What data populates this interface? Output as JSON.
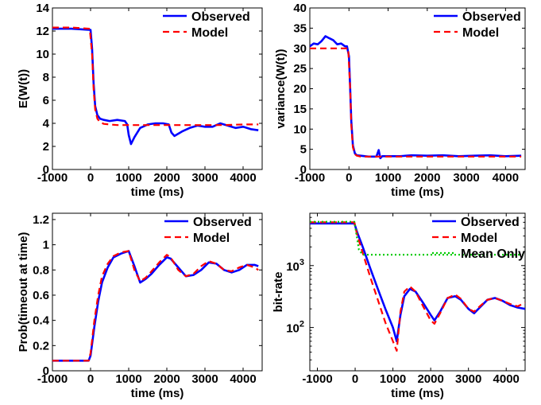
{
  "chart_data": [
    {
      "type": "line",
      "xlabel": "time (ms)",
      "ylabel": "E(W(t))",
      "xlim": [
        -1000,
        4500
      ],
      "ylim": [
        0,
        14
      ],
      "yscale": "linear",
      "xticks": [
        -1000,
        0,
        1000,
        2000,
        3000,
        4000
      ],
      "xtick_labels": [
        "-1000",
        "0",
        "1000",
        "2000",
        "3000",
        "4000"
      ],
      "yticks": [
        0,
        2,
        4,
        6,
        8,
        10,
        12,
        14
      ],
      "ytick_labels": [
        "0",
        "2",
        "4",
        "6",
        "8",
        "10",
        "12",
        "14"
      ],
      "legend_position": "top-right",
      "series": [
        {
          "name": "Observed",
          "color": "#0000ff",
          "style": "solid",
          "x": [
            -1000,
            -500,
            0,
            40,
            80,
            120,
            180,
            250,
            350,
            500,
            700,
            900,
            960,
            1000,
            1060,
            1150,
            1300,
            1500,
            1700,
            1900,
            2050,
            2120,
            2200,
            2400,
            2600,
            2800,
            3000,
            3200,
            3400,
            3600,
            3800,
            4000,
            4200,
            4400
          ],
          "y": [
            12.2,
            12.2,
            12.1,
            10.5,
            7.5,
            5.5,
            4.7,
            4.4,
            4.3,
            4.2,
            4.3,
            4.2,
            3.9,
            3.0,
            2.2,
            2.8,
            3.6,
            3.9,
            4.0,
            4.0,
            3.9,
            3.2,
            2.9,
            3.3,
            3.6,
            3.8,
            3.7,
            3.7,
            4.0,
            3.8,
            3.6,
            3.7,
            3.5,
            3.4
          ]
        },
        {
          "name": "Model",
          "color": "#ff0000",
          "style": "dashed",
          "x": [
            -1000,
            -500,
            -20,
            40,
            80,
            120,
            180,
            250,
            350,
            500,
            700,
            1000,
            1500,
            2000,
            2500,
            3000,
            3500,
            4000,
            4400
          ],
          "y": [
            12.3,
            12.3,
            12.2,
            10.0,
            7.0,
            5.2,
            4.4,
            4.1,
            3.95,
            3.9,
            3.85,
            3.85,
            3.85,
            3.85,
            3.85,
            3.85,
            3.85,
            3.9,
            3.9
          ]
        }
      ]
    },
    {
      "type": "line",
      "xlabel": "time (ms)",
      "ylabel": "variance(W(t))",
      "xlim": [
        -1000,
        4500
      ],
      "ylim": [
        0,
        40
      ],
      "yscale": "linear",
      "xticks": [
        -1000,
        0,
        1000,
        2000,
        3000,
        4000
      ],
      "xtick_labels": [
        "-1000",
        "0",
        "1000",
        "2000",
        "3000",
        "4000"
      ],
      "yticks": [
        0,
        5,
        10,
        15,
        20,
        25,
        30,
        35,
        40
      ],
      "ytick_labels": [
        "0",
        "5",
        "10",
        "15",
        "20",
        "25",
        "30",
        "35",
        "40"
      ],
      "legend_position": "top-right",
      "series": [
        {
          "name": "Observed",
          "color": "#0000ff",
          "style": "solid",
          "x": [
            -1000,
            -900,
            -800,
            -700,
            -600,
            -500,
            -400,
            -300,
            -200,
            -100,
            -50,
            0,
            30,
            60,
            100,
            150,
            200,
            300,
            500,
            700,
            760,
            800,
            850,
            1000,
            1300,
            1600,
            2000,
            2400,
            2800,
            3200,
            3600,
            4000,
            4400
          ],
          "y": [
            30.5,
            31.2,
            31.0,
            31.8,
            33.0,
            32.5,
            32.0,
            31.0,
            31.2,
            30.5,
            30.5,
            28.0,
            20.0,
            12.0,
            6.0,
            4.0,
            3.5,
            3.4,
            3.2,
            3.2,
            4.8,
            2.8,
            3.3,
            3.3,
            3.3,
            3.5,
            3.4,
            3.5,
            3.3,
            3.4,
            3.5,
            3.3,
            3.4
          ]
        },
        {
          "name": "Model",
          "color": "#ff0000",
          "style": "dashed",
          "x": [
            -1000,
            -500,
            -20,
            30,
            60,
            100,
            150,
            200,
            300,
            500,
            1000,
            2000,
            3000,
            4000,
            4400
          ],
          "y": [
            30.0,
            30.0,
            30.0,
            20.0,
            11.0,
            5.5,
            3.8,
            3.4,
            3.2,
            3.2,
            3.2,
            3.2,
            3.2,
            3.2,
            3.2
          ]
        }
      ]
    },
    {
      "type": "line",
      "xlabel": "time (ms)",
      "ylabel": "Prob(timeout at time)",
      "xlim": [
        -1000,
        4500
      ],
      "ylim": [
        0,
        1.25
      ],
      "yscale": "linear",
      "xticks": [
        -1000,
        0,
        1000,
        2000,
        3000,
        4000
      ],
      "xtick_labels": [
        "-1000",
        "0",
        "1000",
        "2000",
        "3000",
        "4000"
      ],
      "yticks": [
        0,
        0.2,
        0.4,
        0.6,
        0.8,
        1,
        1.2
      ],
      "ytick_labels": [
        "0",
        "0.2",
        "0.4",
        "0.6",
        "0.8",
        "1",
        "1.2"
      ],
      "legend_position": "top-right",
      "series": [
        {
          "name": "Observed",
          "color": "#0000ff",
          "style": "solid",
          "x": [
            -1000,
            -500,
            -50,
            0,
            100,
            200,
            300,
            450,
            600,
            800,
            1000,
            1150,
            1300,
            1450,
            1600,
            1800,
            2000,
            2100,
            2300,
            2500,
            2700,
            2900,
            3100,
            3300,
            3500,
            3700,
            3900,
            4100,
            4300,
            4400
          ],
          "y": [
            0.08,
            0.08,
            0.08,
            0.12,
            0.35,
            0.55,
            0.7,
            0.82,
            0.9,
            0.93,
            0.95,
            0.83,
            0.7,
            0.73,
            0.77,
            0.84,
            0.9,
            0.89,
            0.82,
            0.75,
            0.76,
            0.8,
            0.86,
            0.85,
            0.8,
            0.78,
            0.8,
            0.84,
            0.84,
            0.83
          ]
        },
        {
          "name": "Model",
          "color": "#ff0000",
          "style": "dashed",
          "x": [
            -1000,
            -500,
            -50,
            0,
            100,
            200,
            300,
            450,
            600,
            800,
            1000,
            1150,
            1300,
            1450,
            1600,
            1800,
            2000,
            2100,
            2300,
            2500,
            2700,
            2900,
            3100,
            3300,
            3500,
            3700,
            3900,
            4100,
            4300,
            4400
          ],
          "y": [
            0.08,
            0.08,
            0.08,
            0.14,
            0.4,
            0.6,
            0.75,
            0.85,
            0.91,
            0.94,
            0.95,
            0.8,
            0.71,
            0.74,
            0.79,
            0.86,
            0.92,
            0.9,
            0.8,
            0.75,
            0.77,
            0.83,
            0.87,
            0.85,
            0.8,
            0.79,
            0.82,
            0.84,
            0.82,
            0.8
          ]
        }
      ]
    },
    {
      "type": "line",
      "xlabel": "time (ms)",
      "ylabel": "bit-rate",
      "xlim": [
        -1200,
        4500
      ],
      "ylim": [
        20,
        7000
      ],
      "yscale": "log",
      "xticks": [
        -1000,
        0,
        1000,
        2000,
        3000,
        4000
      ],
      "xtick_labels": [
        "-1000",
        "0",
        "1000",
        "2000",
        "3000",
        "4000"
      ],
      "yticks": [
        100,
        1000
      ],
      "ytick_labels_base": [
        "10",
        "10"
      ],
      "ytick_labels_exp": [
        "2",
        "3"
      ],
      "legend_position": "top-right",
      "series": [
        {
          "name": "Observed",
          "color": "#0000ff",
          "style": "solid",
          "x": [
            -1200,
            -600,
            -20,
            50,
            200,
            400,
            600,
            800,
            1000,
            1100,
            1200,
            1300,
            1450,
            1600,
            1800,
            2000,
            2100,
            2250,
            2450,
            2650,
            2800,
            3000,
            3150,
            3300,
            3500,
            3700,
            3900,
            4100,
            4300,
            4500
          ],
          "y": [
            4800,
            4800,
            4800,
            3500,
            2000,
            900,
            420,
            200,
            100,
            60,
            160,
            320,
            420,
            380,
            250,
            160,
            130,
            180,
            300,
            320,
            280,
            200,
            170,
            210,
            280,
            300,
            270,
            230,
            210,
            200
          ]
        },
        {
          "name": "Model",
          "color": "#ff0000",
          "style": "dashed",
          "x": [
            -1200,
            -600,
            -20,
            50,
            200,
            400,
            600,
            800,
            1000,
            1100,
            1200,
            1300,
            1450,
            1600,
            1800,
            2000,
            2100,
            2250,
            2450,
            2650,
            2800,
            3000,
            3150,
            3300,
            3500,
            3700,
            3900,
            4100,
            4300,
            4500
          ],
          "y": [
            5000,
            5000,
            5000,
            3200,
            1600,
            650,
            280,
            120,
            60,
            42,
            180,
            380,
            460,
            380,
            220,
            130,
            115,
            170,
            300,
            340,
            290,
            200,
            180,
            220,
            280,
            300,
            270,
            240,
            220,
            250
          ]
        },
        {
          "name": "Mean Only",
          "color": "#00cc00",
          "style": "dotted",
          "x": [
            -1200,
            -600,
            -20,
            40,
            100,
            200,
            500,
            1000,
            2000,
            3000,
            4000,
            4500
          ],
          "y": [
            5100,
            5100,
            5100,
            3000,
            1800,
            1500,
            1500,
            1500,
            1500,
            1500,
            1500,
            1500
          ]
        }
      ]
    }
  ]
}
